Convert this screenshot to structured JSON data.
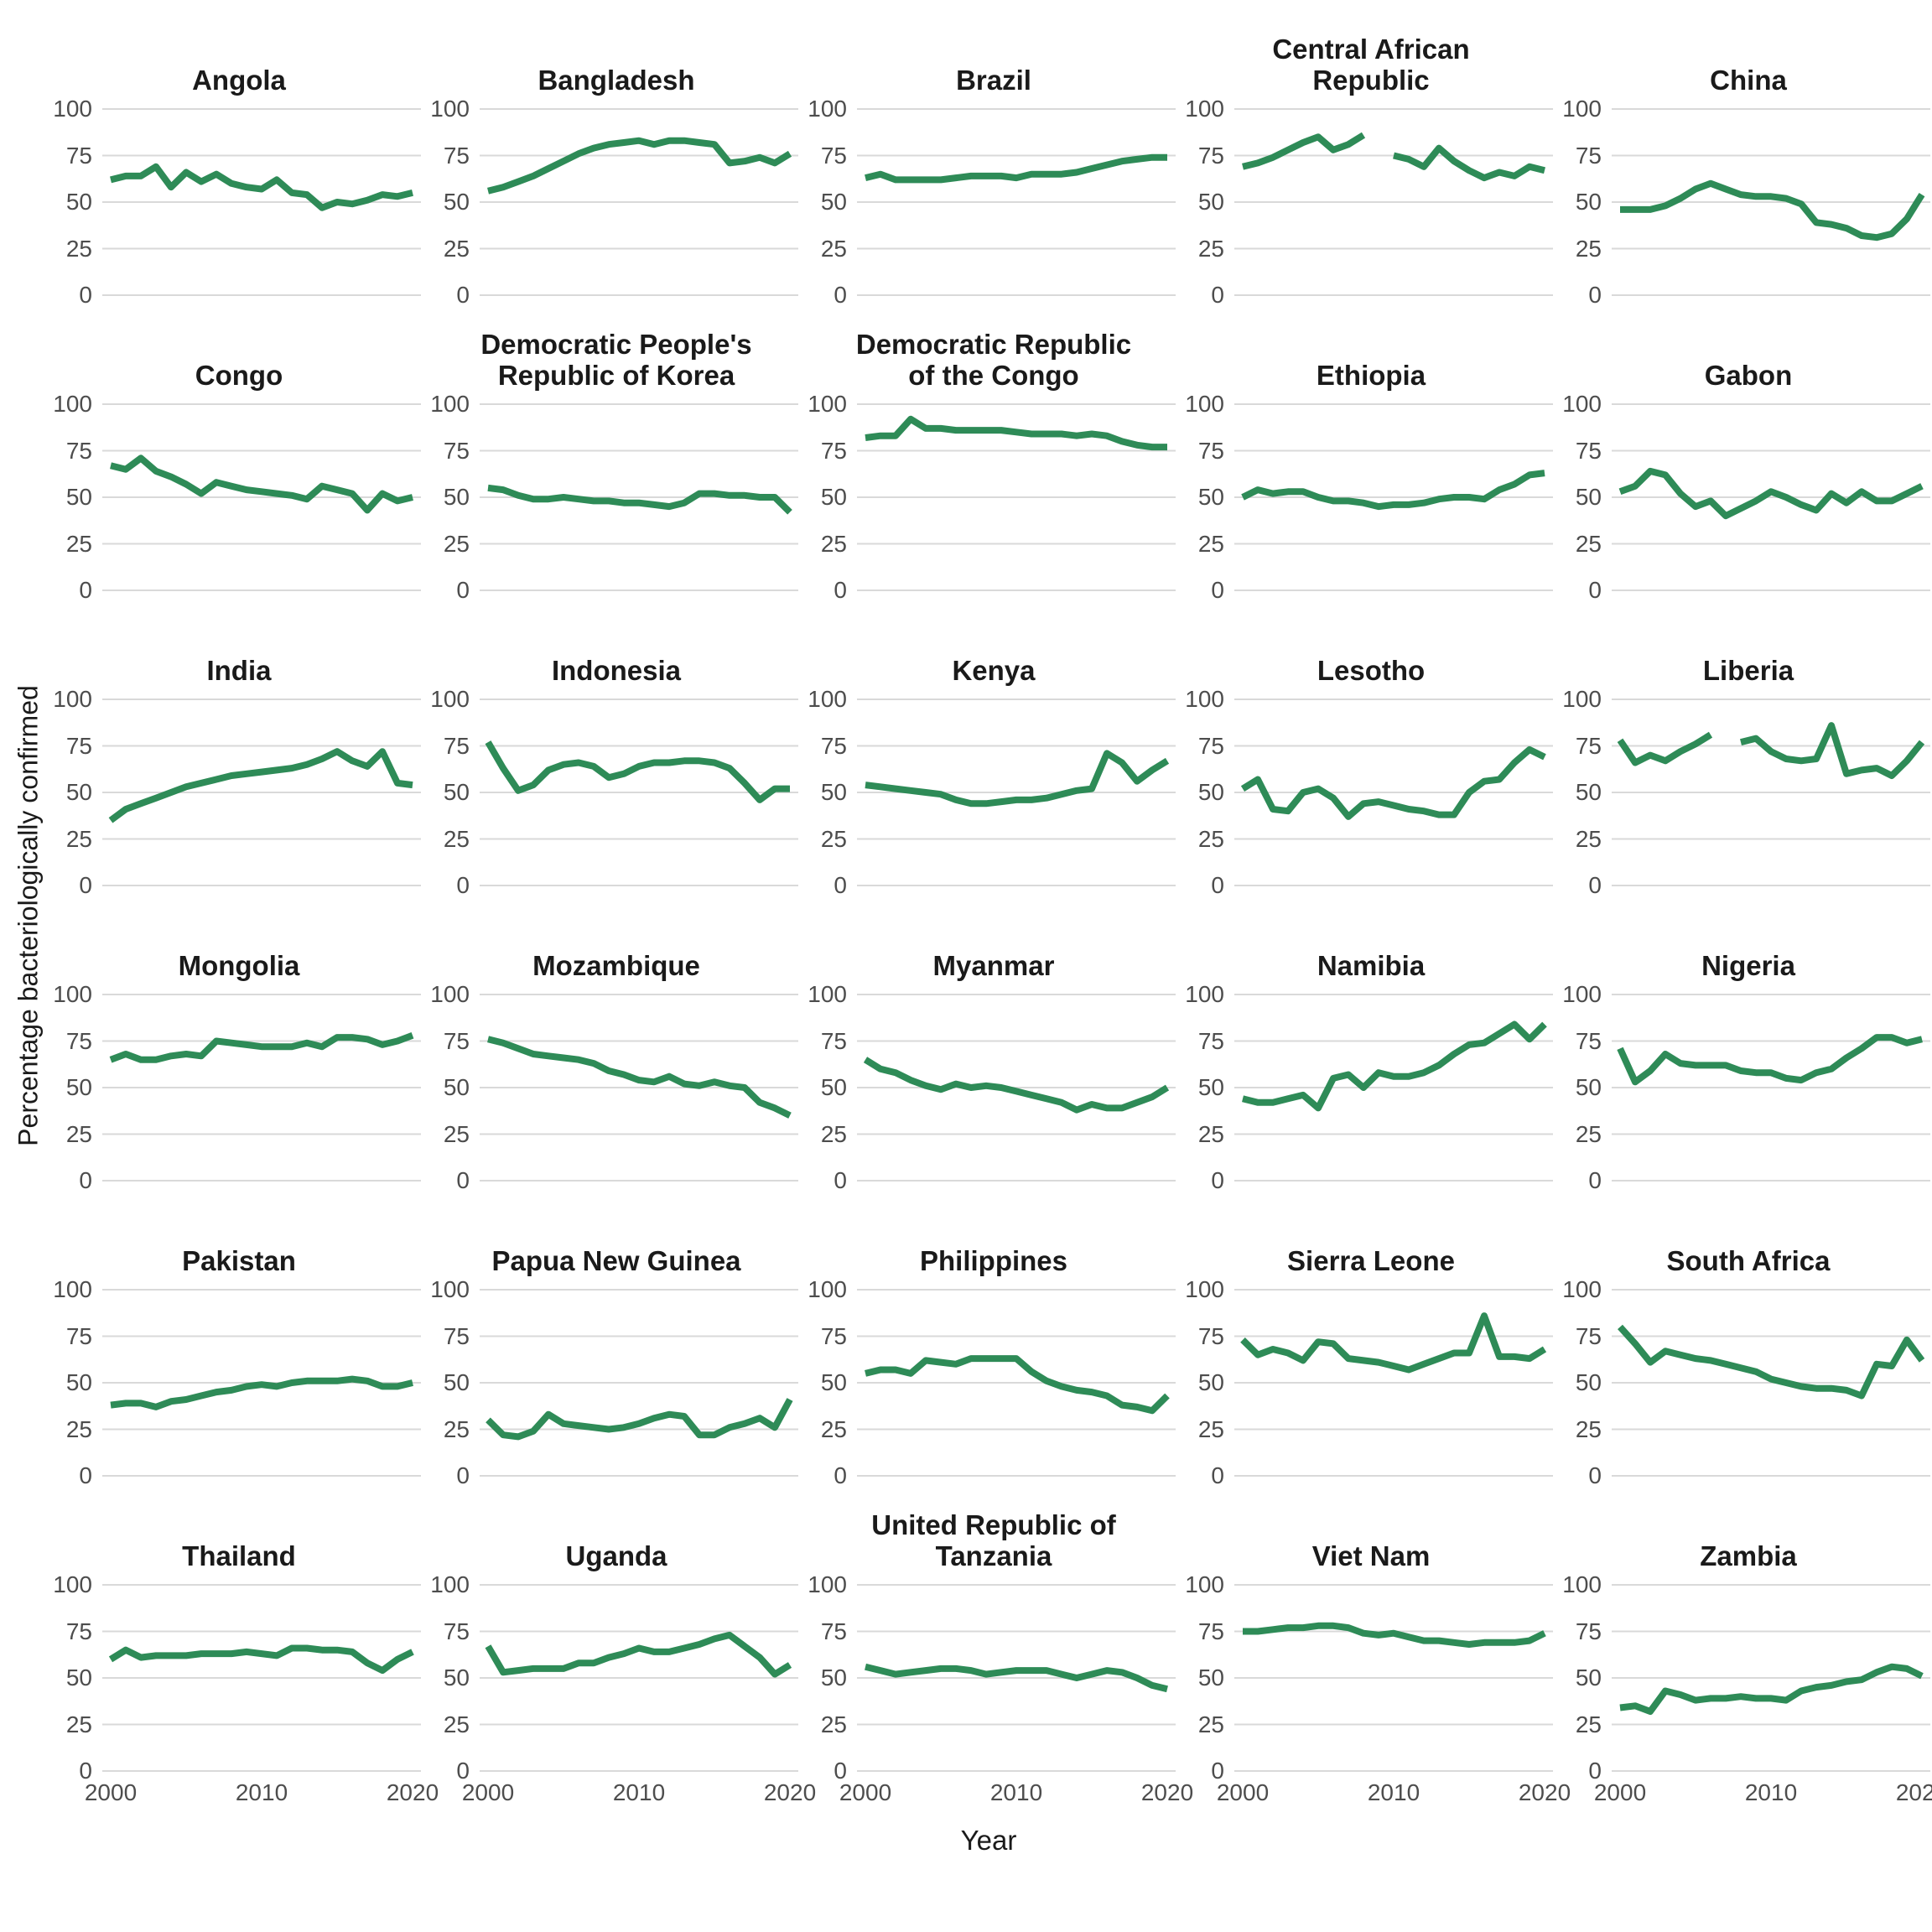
{
  "figure": {
    "x_axis_title": "Year",
    "y_axis_title": "Percentage bacteriologically confirmed",
    "line_color": "#2e8b57",
    "grid_color": "#d9d9d9",
    "tick_text_color": "#4d4d4d",
    "title_text_color": "#1a1a1a",
    "background_color": "#ffffff"
  },
  "chart_data": {
    "type": "line",
    "layout": "facet-grid-6x5",
    "grid": "horizontal-only",
    "legend": "none",
    "xlabel": "Year",
    "ylabel": "Percentage bacteriologically confirmed",
    "xlim": [
      2000,
      2020
    ],
    "ylim": [
      0,
      100
    ],
    "x_ticks": [
      2000,
      2010,
      2020
    ],
    "y_ticks": [
      100,
      75,
      50,
      25,
      0
    ],
    "x": [
      2000,
      2001,
      2002,
      2003,
      2004,
      2005,
      2006,
      2007,
      2008,
      2009,
      2010,
      2011,
      2012,
      2013,
      2014,
      2015,
      2016,
      2017,
      2018,
      2019,
      2020
    ],
    "facets": [
      {
        "country": "Angola",
        "values": [
          62,
          64,
          64,
          69,
          58,
          66,
          61,
          65,
          60,
          58,
          57,
          62,
          55,
          54,
          47,
          50,
          49,
          51,
          54,
          53,
          55
        ]
      },
      {
        "country": "Bangladesh",
        "values": [
          56,
          58,
          61,
          64,
          68,
          72,
          76,
          79,
          81,
          82,
          83,
          81,
          83,
          83,
          82,
          81,
          71,
          72,
          74,
          71,
          76
        ]
      },
      {
        "country": "Brazil",
        "values": [
          63,
          65,
          62,
          62,
          62,
          62,
          63,
          64,
          64,
          64,
          63,
          65,
          65,
          65,
          66,
          68,
          70,
          72,
          73,
          74,
          74
        ]
      },
      {
        "country": "Central African Republic",
        "values": [
          69,
          71,
          74,
          78,
          82,
          85,
          78,
          81,
          86,
          null,
          75,
          73,
          69,
          79,
          72,
          67,
          63,
          66,
          64,
          69,
          67
        ]
      },
      {
        "country": "China",
        "values": [
          46,
          46,
          46,
          48,
          52,
          57,
          60,
          57,
          54,
          53,
          53,
          52,
          49,
          39,
          38,
          36,
          32,
          31,
          33,
          41,
          54
        ]
      },
      {
        "country": "Congo",
        "values": [
          67,
          65,
          71,
          64,
          61,
          57,
          52,
          58,
          56,
          54,
          53,
          52,
          51,
          49,
          56,
          54,
          52,
          43,
          52,
          48,
          50
        ]
      },
      {
        "country": "Democratic People's Republic of Korea",
        "values": [
          55,
          54,
          51,
          49,
          49,
          50,
          49,
          48,
          48,
          47,
          47,
          46,
          45,
          47,
          52,
          52,
          51,
          51,
          50,
          50,
          42
        ]
      },
      {
        "country": "Democratic Republic of the Congo",
        "values": [
          82,
          83,
          83,
          92,
          87,
          87,
          86,
          86,
          86,
          86,
          85,
          84,
          84,
          84,
          83,
          84,
          83,
          80,
          78,
          77,
          77
        ]
      },
      {
        "country": "Ethiopia",
        "values": [
          50,
          54,
          52,
          53,
          53,
          50,
          48,
          48,
          47,
          45,
          46,
          46,
          47,
          49,
          50,
          50,
          49,
          54,
          57,
          62,
          63
        ]
      },
      {
        "country": "Gabon",
        "values": [
          53,
          56,
          64,
          62,
          52,
          45,
          48,
          40,
          44,
          48,
          53,
          50,
          46,
          43,
          52,
          47,
          53,
          48,
          48,
          52,
          56
        ]
      },
      {
        "country": "India",
        "values": [
          35,
          41,
          44,
          47,
          50,
          53,
          55,
          57,
          59,
          60,
          61,
          62,
          63,
          65,
          68,
          72,
          67,
          64,
          72,
          55,
          54
        ]
      },
      {
        "country": "Indonesia",
        "values": [
          77,
          63,
          51,
          54,
          62,
          65,
          66,
          64,
          58,
          60,
          64,
          66,
          66,
          67,
          67,
          66,
          63,
          55,
          46,
          52,
          52
        ]
      },
      {
        "country": "Kenya",
        "values": [
          54,
          53,
          52,
          51,
          50,
          49,
          46,
          44,
          44,
          45,
          46,
          46,
          47,
          49,
          51,
          52,
          71,
          66,
          56,
          62,
          67
        ]
      },
      {
        "country": "Lesotho",
        "values": [
          52,
          57,
          41,
          40,
          50,
          52,
          47,
          37,
          44,
          45,
          43,
          41,
          40,
          38,
          38,
          50,
          56,
          57,
          66,
          73,
          69
        ]
      },
      {
        "country": "Liberia",
        "values": [
          78,
          66,
          70,
          67,
          72,
          76,
          81,
          null,
          77,
          79,
          72,
          68,
          67,
          68,
          86,
          60,
          62,
          63,
          59,
          67,
          77
        ]
      },
      {
        "country": "Mongolia",
        "values": [
          65,
          68,
          65,
          65,
          67,
          68,
          67,
          75,
          74,
          73,
          72,
          72,
          72,
          74,
          72,
          77,
          77,
          76,
          73,
          75,
          78
        ]
      },
      {
        "country": "Mozambique",
        "values": [
          76,
          74,
          71,
          68,
          67,
          66,
          65,
          63,
          59,
          57,
          54,
          53,
          56,
          52,
          51,
          53,
          51,
          50,
          42,
          39,
          35
        ]
      },
      {
        "country": "Myanmar",
        "values": [
          65,
          60,
          58,
          54,
          51,
          49,
          52,
          50,
          51,
          50,
          48,
          46,
          44,
          42,
          38,
          41,
          39,
          39,
          42,
          45,
          50
        ]
      },
      {
        "country": "Namibia",
        "values": [
          44,
          42,
          42,
          44,
          46,
          39,
          55,
          57,
          50,
          58,
          56,
          56,
          58,
          62,
          68,
          73,
          74,
          79,
          84,
          76,
          84
        ]
      },
      {
        "country": "Nigeria",
        "values": [
          71,
          53,
          59,
          68,
          63,
          62,
          62,
          62,
          59,
          58,
          58,
          55,
          54,
          58,
          60,
          66,
          71,
          77,
          77,
          74,
          76
        ]
      },
      {
        "country": "Pakistan",
        "values": [
          38,
          39,
          39,
          37,
          40,
          41,
          43,
          45,
          46,
          48,
          49,
          48,
          50,
          51,
          51,
          51,
          52,
          51,
          48,
          48,
          50
        ]
      },
      {
        "country": "Papua New Guinea",
        "values": [
          30,
          22,
          21,
          24,
          33,
          28,
          27,
          26,
          25,
          26,
          28,
          31,
          33,
          32,
          22,
          22,
          26,
          28,
          31,
          26,
          41
        ]
      },
      {
        "country": "Philippines",
        "values": [
          55,
          57,
          57,
          55,
          62,
          61,
          60,
          63,
          63,
          63,
          63,
          56,
          51,
          48,
          46,
          45,
          43,
          38,
          37,
          35,
          43
        ]
      },
      {
        "country": "Sierra Leone",
        "values": [
          73,
          65,
          68,
          66,
          62,
          72,
          71,
          63,
          62,
          61,
          59,
          57,
          60,
          63,
          66,
          66,
          86,
          64,
          64,
          63,
          68
        ]
      },
      {
        "country": "South Africa",
        "values": [
          80,
          71,
          61,
          67,
          65,
          63,
          62,
          60,
          58,
          56,
          52,
          50,
          48,
          47,
          47,
          46,
          43,
          60,
          59,
          73,
          62
        ]
      },
      {
        "country": "Thailand",
        "values": [
          60,
          65,
          61,
          62,
          62,
          62,
          63,
          63,
          63,
          64,
          63,
          62,
          66,
          66,
          65,
          65,
          64,
          58,
          54,
          60,
          64
        ]
      },
      {
        "country": "Uganda",
        "values": [
          67,
          53,
          54,
          55,
          55,
          55,
          58,
          58,
          61,
          63,
          66,
          64,
          64,
          66,
          68,
          71,
          73,
          67,
          61,
          52,
          57
        ]
      },
      {
        "country": "United Republic of Tanzania",
        "values": [
          56,
          54,
          52,
          53,
          54,
          55,
          55,
          54,
          52,
          53,
          54,
          54,
          54,
          52,
          50,
          52,
          54,
          53,
          50,
          46,
          44
        ]
      },
      {
        "country": "Viet Nam",
        "values": [
          75,
          75,
          76,
          77,
          77,
          78,
          78,
          77,
          74,
          73,
          74,
          72,
          70,
          70,
          69,
          68,
          69,
          69,
          69,
          70,
          74
        ]
      },
      {
        "country": "Zambia",
        "values": [
          34,
          35,
          32,
          43,
          41,
          38,
          39,
          39,
          40,
          39,
          39,
          38,
          43,
          45,
          46,
          48,
          49,
          53,
          56,
          55,
          51
        ]
      }
    ]
  }
}
